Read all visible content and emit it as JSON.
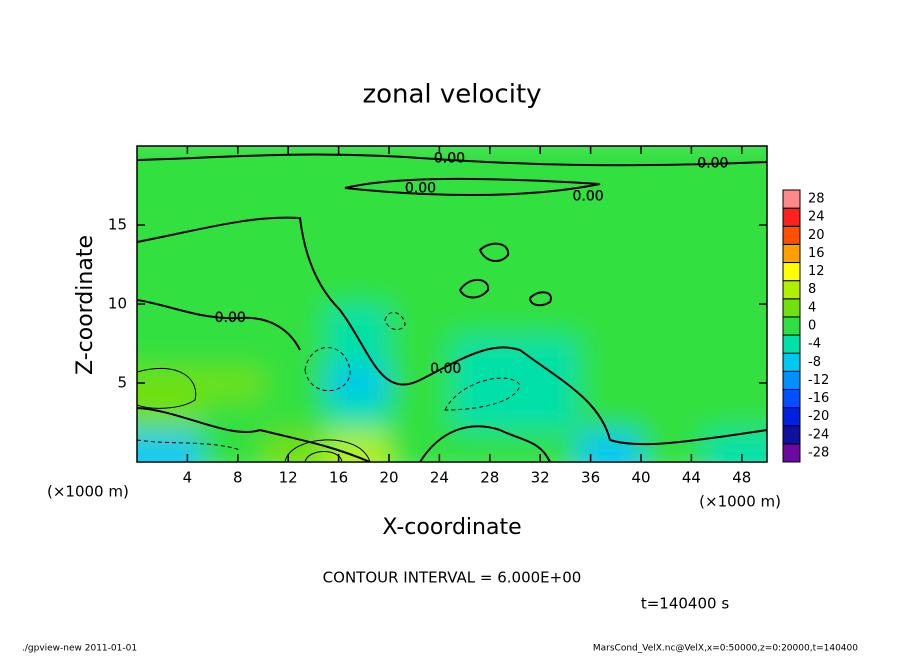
{
  "chart_data": {
    "type": "contour",
    "title": "zonal velocity",
    "xlabel": "X-coordinate",
    "ylabel": "Z-coordinate",
    "xunit": "(×1000 m)",
    "yunit": "(×1000 m)",
    "xlim": [
      0,
      50
    ],
    "ylim": [
      0,
      20
    ],
    "xticks": [
      4,
      8,
      12,
      16,
      20,
      24,
      28,
      32,
      36,
      40,
      44,
      48
    ],
    "yticks": [
      5,
      10,
      15
    ],
    "x": [
      2.5,
      7.5,
      12.5,
      17.5,
      22.5,
      27.5,
      32.5,
      37.5,
      42.5,
      47.5
    ],
    "z": [
      1,
      3,
      5,
      7,
      9,
      11,
      13,
      15,
      17,
      19
    ],
    "values": [
      [
        -8,
        1,
        6,
        10,
        1,
        0,
        1,
        -6,
        0,
        -4
      ],
      [
        4,
        1,
        1,
        -2,
        1,
        -2,
        -2,
        0,
        0,
        0
      ],
      [
        6,
        4,
        0,
        -6,
        1,
        -4,
        -4,
        0,
        0,
        1
      ],
      [
        1,
        1,
        0,
        -5,
        0,
        -2,
        -2,
        0,
        0,
        1
      ],
      [
        1,
        1,
        -1,
        -2,
        -1,
        0,
        0,
        0,
        1,
        1
      ],
      [
        1,
        1,
        -1,
        -1,
        0,
        0,
        0,
        1,
        1,
        1
      ],
      [
        0,
        -1,
        -1,
        -1,
        0,
        0,
        0,
        0,
        0,
        0
      ],
      [
        1,
        0,
        0,
        0,
        0,
        0,
        0,
        1,
        0,
        0
      ],
      [
        1,
        1,
        1,
        1,
        1,
        1,
        1,
        1,
        1,
        1
      ],
      [
        1,
        1,
        1,
        1,
        1,
        1,
        1,
        1,
        1,
        1
      ]
    ],
    "colorbar": {
      "levels": [
        -28,
        -24,
        -20,
        -16,
        -12,
        -8,
        -4,
        0,
        4,
        8,
        12,
        16,
        20,
        24,
        28
      ],
      "colors": [
        "#6a0aa0",
        "#1010a0",
        "#0020e0",
        "#0050ff",
        "#0090ff",
        "#00c8f0",
        "#00e0a8",
        "#30e040",
        "#70e010",
        "#b0f000",
        "#ffff00",
        "#ffa000",
        "#ff5000",
        "#ff2020",
        "#ff8888"
      ]
    },
    "contour_labels": [
      {
        "text": "0.00",
        "x": 24.8,
        "z": 19.2
      },
      {
        "text": "0.00",
        "x": 45.7,
        "z": 18.9
      },
      {
        "text": "0.00",
        "x": 22.5,
        "z": 17.3
      },
      {
        "text": "0.00",
        "x": 35.8,
        "z": 16.8
      },
      {
        "text": "0.00",
        "x": 7.4,
        "z": 9.1
      },
      {
        "text": "0.00",
        "x": 24.5,
        "z": 5.9
      }
    ],
    "contour_interval": "CONTOUR INTERVAL = 6.000E+00",
    "time": "t=140400 s"
  },
  "footer": {
    "left": "./gpview-new  2011-01-01",
    "right": "MarsCond_VelX.nc@VelX,x=0:50000,z=0:20000,t=140400"
  }
}
